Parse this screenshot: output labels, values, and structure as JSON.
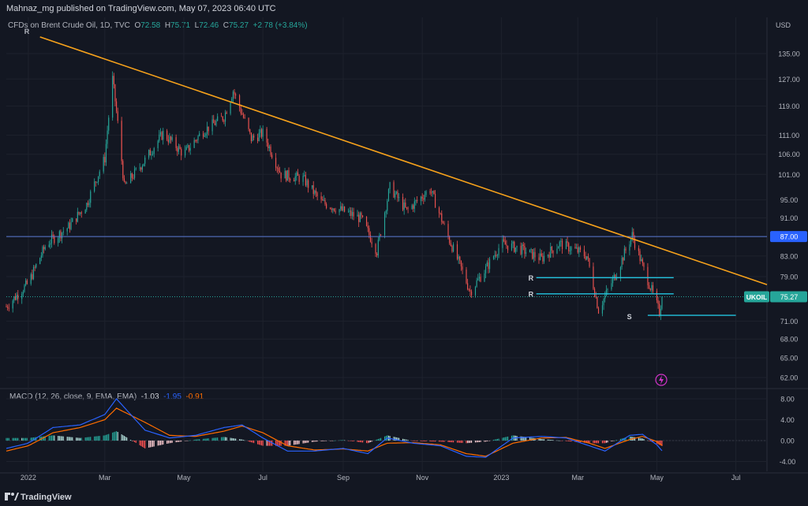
{
  "publisher": "Mahnaz_mg published on TradingView.com, May 07, 2023 06:40 UTC",
  "symbol_header": {
    "name": "CFDs on Brent Crude Oil, 1D, TVC",
    "o_label": "O",
    "o": "72.58",
    "h_label": "H",
    "h": "75.71",
    "l_label": "L",
    "l": "72.46",
    "c_label": "C",
    "c": "75.27",
    "change": "+2.78 (+3.84%)"
  },
  "currency": "USD",
  "macd_header": {
    "label": "MACD (12, 26, close, 9, EMA, EMA)",
    "hist": "-1.03",
    "macd": "-1.95",
    "signal": "-0.91"
  },
  "price_axis_labels": [
    "135.00",
    "127.00",
    "119.00",
    "111.00",
    "106.00",
    "101.00",
    "95.00",
    "91.00",
    "87.00",
    "83.00",
    "79.00",
    "75.27",
    "71.00",
    "68.00",
    "65.00",
    "62.00"
  ],
  "macd_axis_labels": [
    "8.00",
    "4.00",
    "0.00",
    "-4.00"
  ],
  "time_axis_labels": [
    "2022",
    "Mar",
    "May",
    "Jul",
    "Sep",
    "Nov",
    "2023",
    "Mar",
    "May",
    "Jul"
  ],
  "price_tag": {
    "symbol": "UKOIL",
    "value": "75.27"
  },
  "level_tag": "87.00",
  "annotations": {
    "resistance": "R",
    "support": "S",
    "top_marker": "R"
  },
  "footer_brand": "TradingView",
  "colors": {
    "background": "#131722",
    "up": "#26a69a",
    "down": "#ef5350",
    "trendline": "#f7a21b",
    "level_line": "#5b7bd6",
    "sr_lines": "#22c4e0",
    "macd_line": "#2962ff",
    "signal_line": "#ff6d00",
    "price_tag": "#26a69a",
    "level_tag": "#2962ff"
  },
  "chart_data": {
    "type": "line",
    "title": "CFDs on Brent Crude Oil, 1D, TVC",
    "ylabel": "USD",
    "x": [
      "2021-12-15",
      "2022-01-01",
      "2022-01-15",
      "2022-02-01",
      "2022-02-15",
      "2022-03-01",
      "2022-03-07",
      "2022-03-16",
      "2022-04-01",
      "2022-04-15",
      "2022-05-01",
      "2022-05-15",
      "2022-06-01",
      "2022-06-08",
      "2022-06-22",
      "2022-07-01",
      "2022-07-15",
      "2022-08-01",
      "2022-08-15",
      "2022-09-01",
      "2022-09-15",
      "2022-09-27",
      "2022-10-07",
      "2022-10-20",
      "2022-11-07",
      "2022-11-20",
      "2022-12-08",
      "2022-12-20",
      "2023-01-01",
      "2023-01-15",
      "2023-02-01",
      "2023-02-15",
      "2023-03-01",
      "2023-03-08",
      "2023-03-17",
      "2023-03-31",
      "2023-04-12",
      "2023-04-20",
      "2023-05-03",
      "2023-05-05"
    ],
    "series": [
      {
        "values": [
          73.5,
          77.8,
          85.5,
          89.0,
          94.0,
          105.0,
          127.0,
          98.0,
          104.5,
          111.5,
          106.0,
          111.8,
          116.0,
          123.5,
          110.0,
          111.5,
          101.0,
          100.0,
          94.5,
          92.5,
          90.8,
          84.0,
          97.9,
          92.5,
          97.5,
          87.5,
          76.2,
          80.5,
          85.5,
          84.5,
          82.5,
          85.5,
          84.0,
          83.0,
          72.9,
          79.8,
          87.3,
          81.0,
          72.5,
          75.27
        ]
      }
    ],
    "ylim": [
      60,
      140
    ],
    "yscale": "log",
    "annotations": {
      "horizontal_level": 87.0,
      "resistance_levels": [
        78.8,
        75.8
      ],
      "support_level": 72.0,
      "trendline": {
        "from": [
          "2022-01-10",
          140.5
        ],
        "to": [
          "2023-07-25",
          77.5
        ]
      },
      "last_price": 75.27
    },
    "macd": {
      "ylim": [
        -6,
        9.5
      ],
      "x": [
        "2021-12-15",
        "2022-01-01",
        "2022-01-20",
        "2022-02-10",
        "2022-03-01",
        "2022-03-10",
        "2022-04-01",
        "2022-04-20",
        "2022-05-10",
        "2022-06-01",
        "2022-06-15",
        "2022-07-01",
        "2022-07-20",
        "2022-08-10",
        "2022-09-01",
        "2022-09-20",
        "2022-10-05",
        "2022-10-25",
        "2022-11-15",
        "2022-12-05",
        "2022-12-20",
        "2023-01-10",
        "2023-02-01",
        "2023-02-20",
        "2023-03-10",
        "2023-03-22",
        "2023-04-10",
        "2023-04-20",
        "2023-05-01",
        "2023-05-05"
      ],
      "macd_line": [
        -1.5,
        -0.5,
        2.5,
        3.0,
        5.0,
        8.0,
        2.0,
        0.5,
        1.0,
        2.5,
        3.0,
        0.5,
        -2.0,
        -2.0,
        -1.5,
        -2.5,
        0.5,
        -0.5,
        -1.0,
        -3.0,
        -3.2,
        0.5,
        0.8,
        0.5,
        -1.0,
        -2.0,
        1.0,
        1.2,
        -0.8,
        -1.95
      ],
      "signal_line": [
        -2.0,
        -1.0,
        1.5,
        2.5,
        4.0,
        6.2,
        3.5,
        1.0,
        0.8,
        1.8,
        2.8,
        1.5,
        -1.0,
        -1.8,
        -1.6,
        -2.0,
        -0.5,
        -0.4,
        -0.8,
        -2.5,
        -3.0,
        -0.5,
        0.5,
        0.6,
        -0.5,
        -1.5,
        0.2,
        0.8,
        -0.2,
        -0.91
      ]
    }
  }
}
